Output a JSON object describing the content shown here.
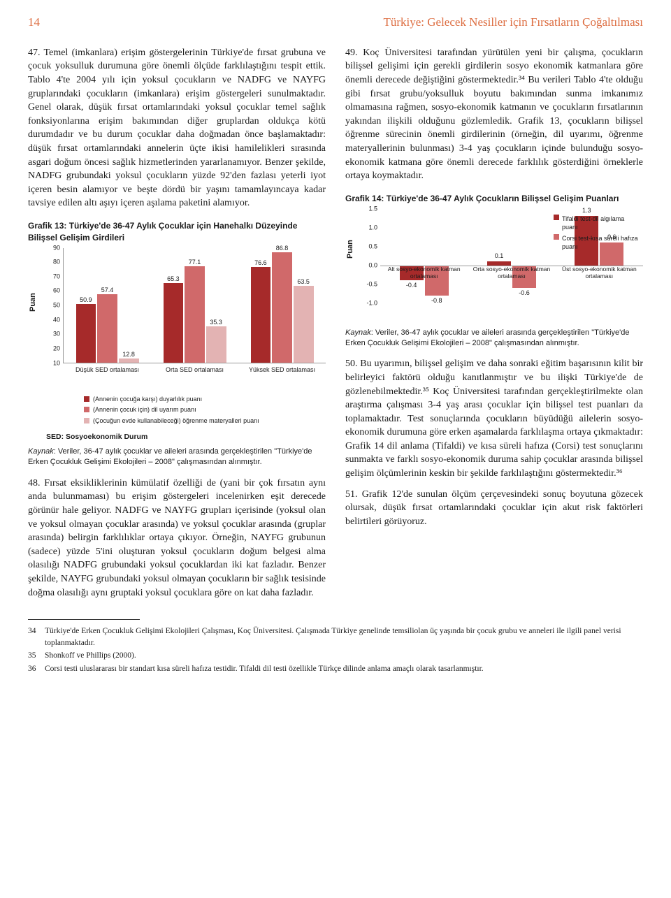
{
  "page_number": "14",
  "header_title": "Türkiye: Gelecek Nesiller için Fırsatların Çoğaltılması",
  "para47": "47. Temel (imkanlara) erişim göstergelerinin Türkiye'de fırsat grubuna ve çocuk yoksulluk durumuna göre önemli ölçüde farklılaştığını tespit ettik. Tablo 4'te 2004 yılı için yoksul çocukların ve NADFG ve NAYFG gruplarındaki çocukların (imkanlara) erişim göstergeleri sunulmaktadır. Genel olarak, düşük fırsat ortamlarındaki yoksul çocuklar temel sağlık fonksiyonlarına erişim bakımından diğer gruplardan oldukça kötü durumdadır ve bu durum çocuklar daha doğmadan önce başlamaktadır: düşük fırsat ortamlarındaki annelerin üçte ikisi hamilelikleri sırasında asgari doğum öncesi sağlık hizmetlerinden yararlanamıyor. Benzer şekilde, NADFG grubundaki yoksul çocukların yüzde 92'den fazlası yeterli iyot içeren besin alamıyor ve beşte dördü bir yaşını tamamlayıncaya kadar tavsiye edilen altı aşıyı içeren aşılama paketini alamıyor.",
  "para49": "49. Koç Üniversitesi tarafından yürütülen yeni bir çalışma, çocukların bilişsel gelişimi için gerekli girdilerin sosyo ekonomik katmanlara göre önemli derecede değiştiğini göstermektedir.³⁴ Bu verileri Tablo 4'te olduğu gibi fırsat grubu/yoksulluk boyutu bakımından sunma imkanımız olmamasına rağmen, sosyo-ekonomik katmanın ve çocukların fırsatlarının yakından ilişkili olduğunu gözlemledik. Grafik 13, çocukların bilişsel öğrenme sürecinin önemli girdilerinin (örneğin, dil uyarımı, öğrenme materyallerinin bulunması) 3-4 yaş çocukların içinde bulunduğu sosyo-ekonomik katmana göre önemli derecede farklılık gösterdiğini örneklerle ortaya koymaktadır.",
  "chart13": {
    "title": "Grafik 13: Türkiye'de 36-47 Aylık Çocuklar için Hanehalkı Düzeyinde Bilişsel Gelişim Girdileri",
    "ylabel": "Puan",
    "ymax": 90,
    "ymin": 10,
    "ytick_step": 10,
    "colors": [
      "#a62a2a",
      "#d0696a",
      "#e3b3b3"
    ],
    "groups": [
      {
        "label": "Düşük SED ortalaması",
        "values": [
          50.9,
          57.4,
          12.8
        ]
      },
      {
        "label": "Orta SED ortalaması",
        "values": [
          65.3,
          77.1,
          35.3
        ]
      },
      {
        "label": "Yüksek SED ortalaması",
        "values": [
          76.6,
          86.8,
          63.5
        ]
      }
    ],
    "legend": [
      "(Annenin çocuğa karşı) duyarlılık puanı",
      "(Annenin çocuk için) dil uyarım puanı",
      "(Çocuğun evde kullanabileceği) öğrenme materyalleri puanı"
    ],
    "sed_note": "SED: Sosyoekonomik Durum",
    "source": "Kaynak: Veriler, 36-47 aylık çocuklar ve aileleri arasında gerçekleştirilen \"Türkiye'de Erken Çocukluk Gelişimi Ekolojileri – 2008\" çalışmasından alınmıştır."
  },
  "para48": "48. Fırsat eksikliklerinin kümülatif özelliği de (yani bir çok fırsatın aynı anda bulunmaması) bu erişim göstergeleri incelenirken eşit derecede görünür hale geliyor. NADFG ve NAYFG grupları içerisinde (yoksul olan ve yoksul olmayan çocuklar arasında) ve yoksul çocuklar arasında (gruplar arasında) belirgin farklılıklar ortaya çıkıyor. Örneğin, NAYFG grubunun (sadece) yüzde 5'ini oluşturan yoksul çocukların doğum belgesi alma olasılığı NADFG grubundaki yoksul çocuklardan iki kat fazladır. Benzer şekilde, NAYFG grubundaki yoksul olmayan çocukların bir sağlık tesisinde doğma olasılığı aynı gruptaki yoksul çocuklara göre on kat daha fazladır.",
  "chart14": {
    "title": "Grafik 14: Türkiye'de 36-47 Aylık Çocukların Bilişsel Gelişim Puanları",
    "ylabel": "Puan",
    "ymax": 1.5,
    "ymin": -1.0,
    "ytick_step": 0.5,
    "colors": [
      "#a62a2a",
      "#d0696a"
    ],
    "groups": [
      {
        "label": "Alt sosyo-ekonomik katman ortalaması",
        "values": [
          -0.4,
          -0.8
        ]
      },
      {
        "label": "Orta sosyo-ekonomik katman ortalaması",
        "values": [
          0.1,
          -0.6
        ]
      },
      {
        "label": "Üst sosyo-ekonomik katman ortalaması",
        "values": [
          1.3,
          0.6
        ]
      }
    ],
    "legend": [
      "Tifaldi test-dil algılama puanı",
      "Corsi test-kısa süreli hafıza puanı"
    ],
    "source": "Kaynak: Veriler, 36-47 aylık çocuklar ve aileleri arasında gerçekleştirilen \"Türkiye'de Erken Çocukluk Gelişimi Ekolojileri – 2008\" çalışmasından alınmıştır."
  },
  "para50": "50. Bu uyarımın, bilişsel gelişim ve daha sonraki eğitim başarısının kilit bir belirleyici faktörü olduğu kanıtlanmıştır ve bu ilişki Türkiye'de de gözlenebilmektedir.³⁵ Koç Üniversitesi tarafından gerçekleştirilmekte olan araştırma çalışması 3-4 yaş arası çocuklar için bilişsel test puanları da toplamaktadır. Test sonuçlarında çocukların büyüdüğü ailelerin sosyo-ekonomik durumuna göre erken aşamalarda farklılaşma ortaya çıkmaktadır: Grafik 14 dil anlama (Tifaldi) ve kısa süreli hafıza (Corsi) test sonuçlarını sunmakta ve farklı sosyo-ekonomik duruma sahip çocuklar arasında bilişsel gelişim ölçümlerinin keskin bir şekilde farklılaştığını göstermektedir.³⁶",
  "para51": "51. Grafik 12'de sunulan ölçüm çerçevesindeki sonuç boyutuna gözecek olursak, düşük fırsat ortamlarındaki çocuklar için akut risk faktörleri belirtileri görüyoruz.",
  "footnotes": [
    {
      "num": "34",
      "text": "Türkiye'de Erken Çocukluk Gelişimi Ekolojileri Çalışması, Koç Üniversitesi. Çalışmada Türkiye genelinde temsiliolan üç yaşında bir çocuk grubu ve anneleri ile ilgili panel verisi toplanmaktadır."
    },
    {
      "num": "35",
      "text": "Shonkoff ve Phillips (2000)."
    },
    {
      "num": "36",
      "text": "Corsi testi uluslararası bir standart kısa süreli hafıza testidir. Tifaldi dil testi özellikle Türkçe dilinde anlama amaçlı olarak tasarlanmıştır."
    }
  ]
}
